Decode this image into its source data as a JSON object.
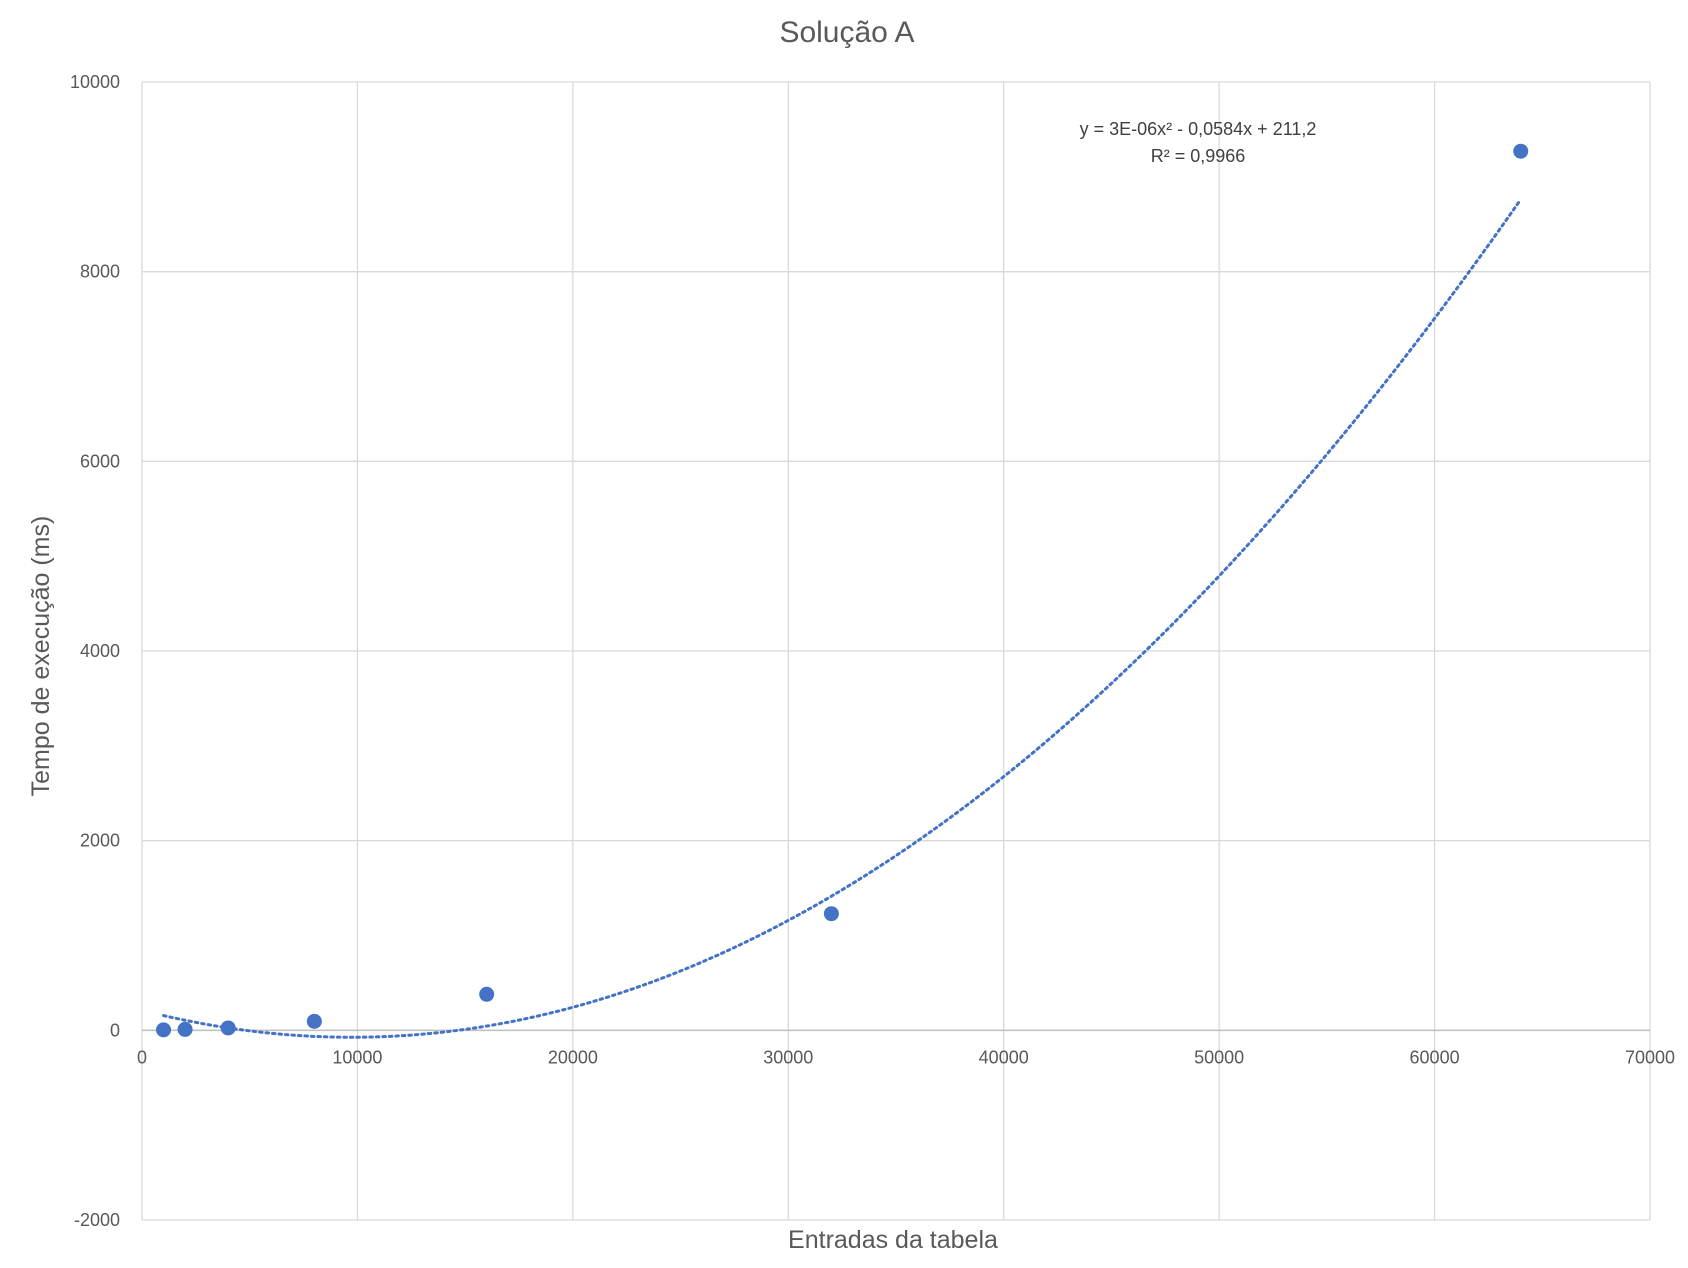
{
  "chart_data": {
    "type": "scatter",
    "title": "Solução A",
    "xlabel": "Entradas da tabela",
    "ylabel": "Tempo de execução (ms)",
    "xlim": [
      0,
      70000
    ],
    "ylim": [
      -2000,
      10000
    ],
    "xticks": [
      0,
      10000,
      20000,
      30000,
      40000,
      50000,
      60000,
      70000
    ],
    "yticks": [
      -2000,
      0,
      2000,
      4000,
      6000,
      8000,
      10000
    ],
    "grid": true,
    "legend": "none",
    "series": [
      {
        "color": "#4472C4",
        "points": [
          {
            "x": 1000,
            "y": 5
          },
          {
            "x": 2000,
            "y": 10
          },
          {
            "x": 4000,
            "y": 25
          },
          {
            "x": 8000,
            "y": 95
          },
          {
            "x": 16000,
            "y": 380
          },
          {
            "x": 32000,
            "y": 1230
          },
          {
            "x": 64000,
            "y": 9270
          }
        ],
        "trendline": {
          "type": "polynomial",
          "order": 2,
          "style": "dotted",
          "coefficients": {
            "a": 3e-06,
            "b": -0.0584,
            "c": 211.2
          },
          "x_range": [
            1000,
            64000
          ],
          "equation_label": "y = 3E-06x² - 0,0584x + 211,2",
          "r2_label": "R² = 0,9966"
        }
      }
    ]
  }
}
